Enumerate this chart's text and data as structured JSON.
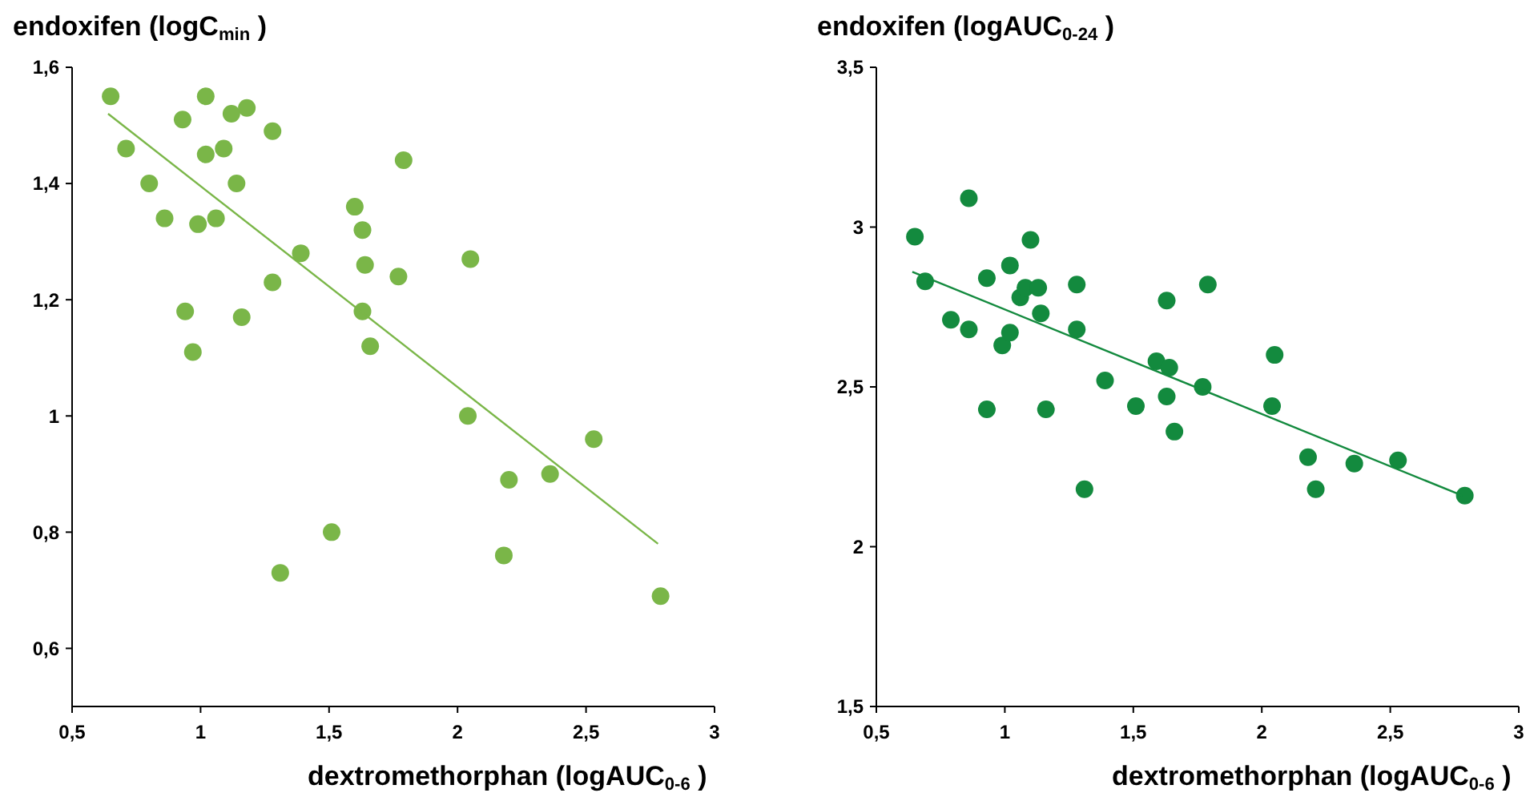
{
  "chart_data": [
    {
      "type": "scatter",
      "ylabel": "endoxifen (logC$_{min}$)",
      "xlabel": "dextromethorphan (logAUC$_{0-6}$)",
      "xlim": [
        0.5,
        3
      ],
      "xticks": [
        {
          "value": 0.5,
          "label": "0,5"
        },
        1,
        {
          "value": 1.5,
          "label": "1,5"
        },
        2,
        {
          "value": 2.5,
          "label": "2,5"
        },
        3
      ],
      "ylim": [
        0.5,
        1.6
      ],
      "yticks": [
        {
          "value": 0.6,
          "label": "0,6"
        },
        {
          "value": 0.8,
          "label": "0,8"
        },
        1,
        {
          "value": 1.2,
          "label": "1,2"
        },
        {
          "value": 1.4,
          "label": "1,4"
        },
        {
          "value": 1.6,
          "label": "1,6"
        }
      ],
      "grid": false,
      "series": [
        {
          "color": "#7ab648",
          "marker": "circle",
          "x": [
            0.65,
            0.71,
            0.8,
            0.86,
            0.93,
            0.94,
            0.97,
            0.99,
            1.02,
            1.02,
            1.06,
            1.09,
            1.12,
            1.14,
            1.16,
            1.18,
            1.28,
            1.28,
            1.31,
            1.39,
            1.51,
            1.6,
            1.63,
            1.64,
            1.63,
            1.66,
            1.77,
            1.79,
            2.05,
            2.04,
            2.2,
            2.18,
            2.36,
            2.53,
            2.79
          ],
          "values": [
            1.55,
            1.46,
            1.4,
            1.34,
            1.51,
            1.18,
            1.11,
            1.33,
            1.55,
            1.45,
            1.34,
            1.46,
            1.52,
            1.4,
            1.17,
            1.53,
            1.49,
            1.23,
            0.73,
            1.28,
            0.8,
            1.36,
            1.32,
            1.26,
            1.18,
            1.12,
            1.24,
            1.44,
            1.27,
            1.0,
            0.89,
            0.76,
            0.9,
            0.96,
            0.69
          ]
        },
        {
          "type": "line",
          "color": "#7ab648",
          "x": [
            0.64,
            2.78
          ],
          "values": [
            1.52,
            0.78
          ]
        }
      ]
    },
    {
      "type": "scatter",
      "ylabel": "endoxifen (logAUC$_{0-24}$)",
      "xlabel": "dextromethorphan (logAUC$_{0-6}$)",
      "xlim": [
        0.5,
        3
      ],
      "xticks": [
        {
          "value": 0.5,
          "label": "0,5"
        },
        1,
        {
          "value": 1.5,
          "label": "1,5"
        },
        2,
        {
          "value": 2.5,
          "label": "2,5"
        },
        3
      ],
      "ylim": [
        1.5,
        3.5
      ],
      "yticks": [
        {
          "value": 1.5,
          "label": "1,5"
        },
        2,
        {
          "value": 2.5,
          "label": "2,5"
        },
        3,
        {
          "value": 3.5,
          "label": "3,5"
        }
      ],
      "grid": false,
      "series": [
        {
          "color": "#138a3e",
          "marker": "circle",
          "x": [
            0.65,
            0.69,
            0.79,
            0.86,
            0.86,
            0.93,
            0.93,
            0.99,
            1.02,
            1.02,
            1.06,
            1.08,
            1.1,
            1.13,
            1.14,
            1.16,
            1.28,
            1.28,
            1.31,
            1.39,
            1.51,
            1.59,
            1.63,
            1.63,
            1.64,
            1.66,
            1.77,
            1.79,
            2.04,
            2.05,
            2.18,
            2.21,
            2.36,
            2.53,
            2.79
          ],
          "values": [
            2.97,
            2.83,
            2.71,
            3.09,
            2.68,
            2.84,
            2.43,
            2.63,
            2.88,
            2.67,
            2.78,
            2.81,
            2.96,
            2.81,
            2.73,
            2.43,
            2.68,
            2.82,
            2.18,
            2.52,
            2.44,
            2.58,
            2.77,
            2.47,
            2.56,
            2.36,
            2.5,
            2.82,
            2.44,
            2.6,
            2.28,
            2.18,
            2.26,
            2.27,
            2.16
          ]
        },
        {
          "type": "line",
          "color": "#138a3e",
          "x": [
            0.64,
            2.78
          ],
          "values": [
            2.86,
            2.16
          ]
        }
      ]
    }
  ]
}
